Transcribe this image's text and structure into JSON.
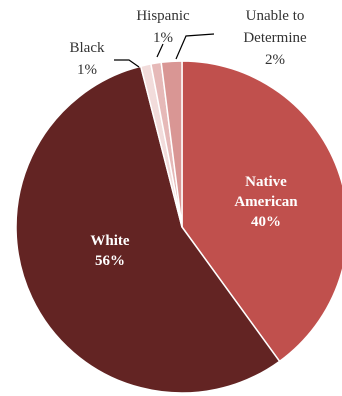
{
  "chart_data": {
    "type": "pie",
    "title": "",
    "slices": [
      {
        "label": "Native American",
        "lines": [
          "Native",
          "American"
        ],
        "value": 40,
        "value_label": "40%",
        "color": "#c0504d",
        "label_placement": "inside"
      },
      {
        "label": "White",
        "lines": [
          "White"
        ],
        "value": 56,
        "value_label": "56%",
        "color": "#632423",
        "label_placement": "inside"
      },
      {
        "label": "Black",
        "lines": [
          "Black"
        ],
        "value": 1,
        "value_label": "1%",
        "color": "#f2dcdb",
        "label_placement": "outside"
      },
      {
        "label": "Hispanic",
        "lines": [
          "Hispanic"
        ],
        "value": 1,
        "value_label": "1%",
        "color": "#e6b9b8",
        "label_placement": "outside"
      },
      {
        "label": "Unable to Determine",
        "lines": [
          "Unable to",
          "Determine"
        ],
        "value": 2,
        "value_label": "2%",
        "color": "#d99694",
        "label_placement": "outside"
      }
    ],
    "start_position": "top",
    "direction": "clockwise",
    "legend": "none"
  }
}
